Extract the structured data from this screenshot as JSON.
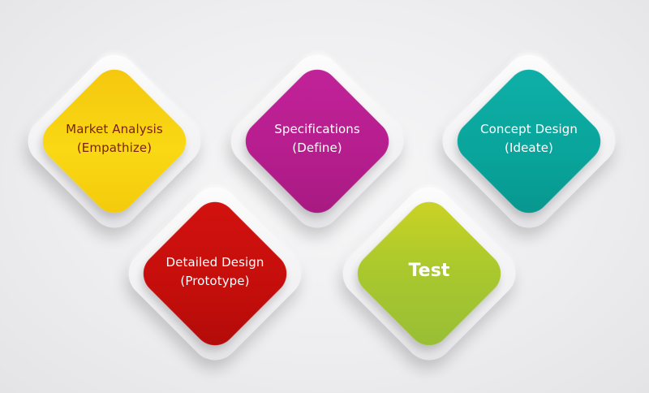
{
  "nodes": [
    {
      "line1": "Market Analysis",
      "line2": "(Empathize)",
      "color": "#f7d20f",
      "text_color": "#7a1f14"
    },
    {
      "line1": "Specifications",
      "line2": "(Define)",
      "color": "#b81e8f",
      "text_color": "#ffffff"
    },
    {
      "line1": "Concept Design",
      "line2": "(Ideate)",
      "color": "#0aa49c",
      "text_color": "#ffffff"
    },
    {
      "line1": "Detailed Design",
      "line2": "(Prototype)",
      "color": "#c70f0c",
      "text_color": "#ffffff"
    },
    {
      "line1": "Test",
      "line2": "",
      "color": "#a6c72f",
      "text_color": "#ffffff"
    }
  ]
}
